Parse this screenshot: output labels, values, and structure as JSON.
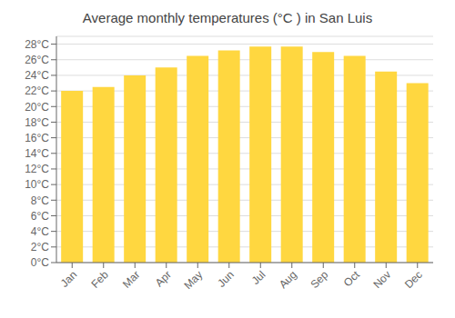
{
  "chart_data": {
    "type": "bar",
    "title": "Average monthly temperatures (°C ) in San Luis",
    "categories": [
      "Jan",
      "Feb",
      "Mar",
      "Apr",
      "May",
      "Jun",
      "Jul",
      "Aug",
      "Sep",
      "Oct",
      "Nov",
      "Dec"
    ],
    "values": [
      22.0,
      22.5,
      24.0,
      25.0,
      26.5,
      27.2,
      27.7,
      27.7,
      27.0,
      26.5,
      24.5,
      23.0
    ],
    "color": "#FFD740",
    "ylim": [
      0,
      29
    ],
    "yticks": [
      {
        "value": 0,
        "label": "0°C"
      },
      {
        "value": 2,
        "label": "2°C"
      },
      {
        "value": 4,
        "label": "4°C"
      },
      {
        "value": 6,
        "label": "6°C"
      },
      {
        "value": 8,
        "label": "8°C"
      },
      {
        "value": 10,
        "label": "10°C"
      },
      {
        "value": 12,
        "label": "12°C"
      },
      {
        "value": 14,
        "label": "14°C"
      },
      {
        "value": 16,
        "label": "16°C"
      },
      {
        "value": 18,
        "label": "18°C"
      },
      {
        "value": 20,
        "label": "20°C"
      },
      {
        "value": 22,
        "label": "22°C"
      },
      {
        "value": 24,
        "label": "24°C"
      },
      {
        "value": 26,
        "label": "26°C"
      },
      {
        "value": 28,
        "label": "28°C"
      }
    ],
    "grid": true
  }
}
